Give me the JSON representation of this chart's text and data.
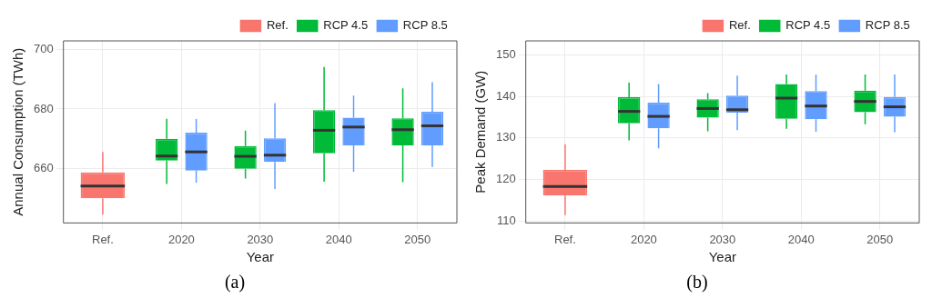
{
  "chart_data": [
    {
      "type": "box",
      "xlabel": "Year",
      "ylabel": "Annual Consumption (TWh)",
      "categories": [
        "Ref.",
        "2020",
        "2030",
        "2040",
        "2050"
      ],
      "ylim": [
        641.5,
        703
      ],
      "yticks": [
        660,
        680,
        700
      ],
      "grid": true,
      "legend": "top right",
      "annotations": [
        "(a)"
      ],
      "series": [
        {
          "name": "Ref.",
          "color": "#f8766d",
          "boxes": [
            {
              "low": 644.3,
              "q1": 649.8,
              "median": 654,
              "q3": 658.6,
              "high": 665.5
            },
            null,
            null,
            null,
            null
          ]
        },
        {
          "name": "RCP 4.5",
          "color": "#00ba38",
          "boxes": [
            null,
            {
              "low": 654.7,
              "q1": 662.6,
              "median": 664.1,
              "q3": 669.9,
              "high": 676.7
            },
            {
              "low": 656.5,
              "q1": 659.8,
              "median": 664,
              "q3": 667.5,
              "high": 672.7
            },
            {
              "low": 655.4,
              "q1": 665,
              "median": 672.8,
              "q3": 679.6,
              "high": 694.2
            },
            {
              "low": 655.3,
              "q1": 667.7,
              "median": 673,
              "q3": 676.8,
              "high": 687
            }
          ]
        },
        {
          "name": "RCP 8.5",
          "color": "#619cff",
          "boxes": [
            null,
            {
              "low": 655.1,
              "q1": 659.2,
              "median": 665.5,
              "q3": 672,
              "high": 676.6
            },
            {
              "low": 653,
              "q1": 662.1,
              "median": 664.4,
              "q3": 670.1,
              "high": 682
            },
            {
              "low": 658.8,
              "q1": 667.7,
              "median": 673.9,
              "q3": 677.1,
              "high": 684.5
            },
            {
              "low": 660.4,
              "q1": 667.7,
              "median": 674.3,
              "q3": 679.1,
              "high": 689
            }
          ]
        }
      ]
    },
    {
      "type": "box",
      "xlabel": "Year",
      "ylabel": "Peak Demand (GW)",
      "categories": [
        "Ref.",
        "2020",
        "2030",
        "2040",
        "2050"
      ],
      "ylim": [
        109.5,
        153.4
      ],
      "yticks": [
        110,
        120,
        130,
        140,
        150
      ],
      "grid": true,
      "legend": "top right",
      "annotations": [
        "(b)"
      ],
      "series": [
        {
          "name": "Ref.",
          "color": "#f8766d",
          "boxes": [
            {
              "low": 111.4,
              "q1": 116.1,
              "median": 118.3,
              "q3": 122.3,
              "high": 128.5
            },
            null,
            null,
            null,
            null
          ]
        },
        {
          "name": "RCP 4.5",
          "color": "#00ba38",
          "boxes": [
            null,
            {
              "low": 129.4,
              "q1": 133.5,
              "median": 136.4,
              "q3": 139.8,
              "high": 143.4
            },
            {
              "low": 131.6,
              "q1": 134.9,
              "median": 137.1,
              "q3": 139.3,
              "high": 140.8
            },
            {
              "low": 132.2,
              "q1": 134.6,
              "median": 139.6,
              "q3": 143,
              "high": 145.3
            },
            {
              "low": 133.3,
              "q1": 136.2,
              "median": 138.8,
              "q3": 141.4,
              "high": 145.3
            }
          ]
        },
        {
          "name": "RCP 8.5",
          "color": "#619cff",
          "boxes": [
            null,
            {
              "low": 127.5,
              "q1": 132.3,
              "median": 135.2,
              "q3": 138.5,
              "high": 143
            },
            {
              "low": 131.9,
              "q1": 136.1,
              "median": 136.8,
              "q3": 140.2,
              "high": 145
            },
            {
              "low": 131.5,
              "q1": 134.5,
              "median": 137.7,
              "q3": 141.3,
              "high": 145.3
            },
            {
              "low": 131.4,
              "q1": 135.1,
              "median": 137.5,
              "q3": 139.9,
              "high": 145.3
            }
          ]
        }
      ]
    }
  ]
}
